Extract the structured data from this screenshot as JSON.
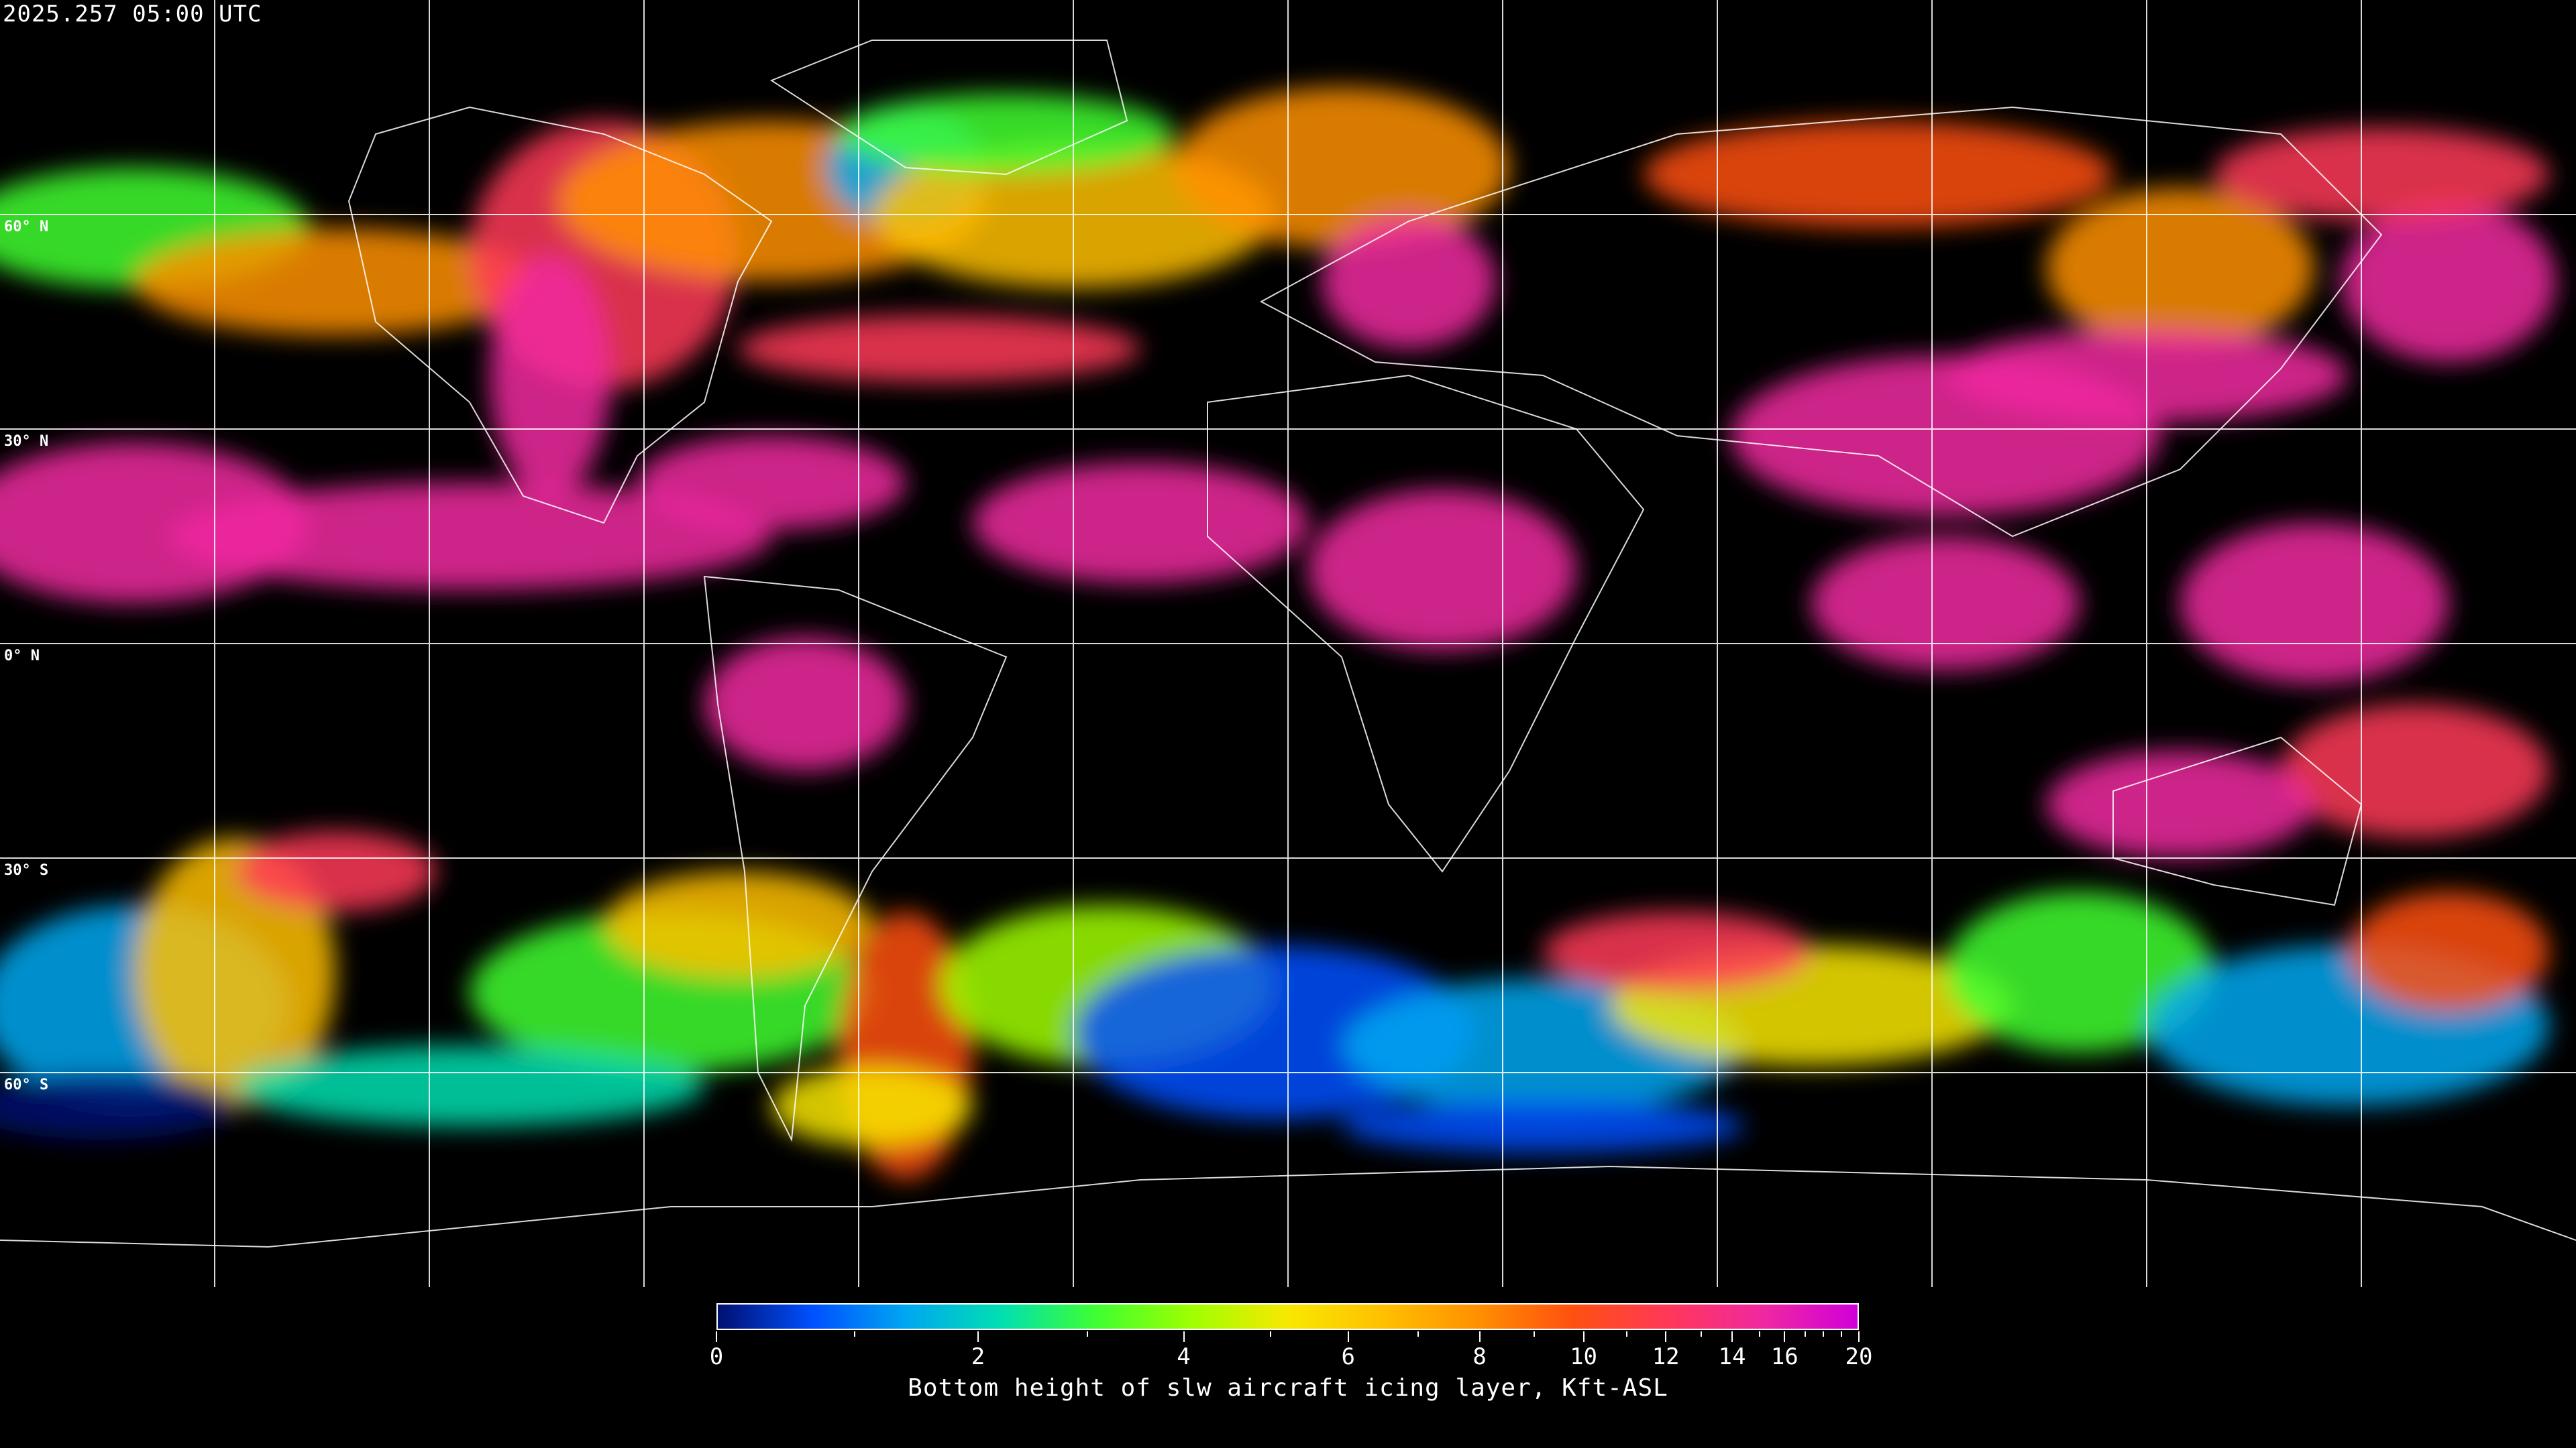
{
  "title": "2025.257 05:00 UTC",
  "map": {
    "projection": "equirectangular",
    "background": "#000000",
    "grid_color": "#ffffff",
    "coastline_color": "#ffffff",
    "lat_labels": [
      "60° N",
      "30° N",
      "0° N",
      "30° S",
      "60° S"
    ]
  },
  "colorbar": {
    "label": "Bottom height of slw aircraft icing layer, Kft-ASL",
    "min": 0,
    "max": 20,
    "tick_labels": [
      "0",
      "2",
      "4",
      "6",
      "8",
      "10",
      "12",
      "14",
      "16",
      "20"
    ],
    "minor_ticks": [
      1,
      3,
      5,
      7,
      9,
      11,
      13,
      15,
      17,
      18,
      19
    ],
    "colors": [
      "#001070",
      "#0050ff",
      "#00a8f0",
      "#00e0b0",
      "#40ff30",
      "#a0ff00",
      "#f8e800",
      "#ffc000",
      "#ff9000",
      "#ff5010",
      "#ff3858",
      "#f028a0",
      "#d000d8"
    ]
  }
}
